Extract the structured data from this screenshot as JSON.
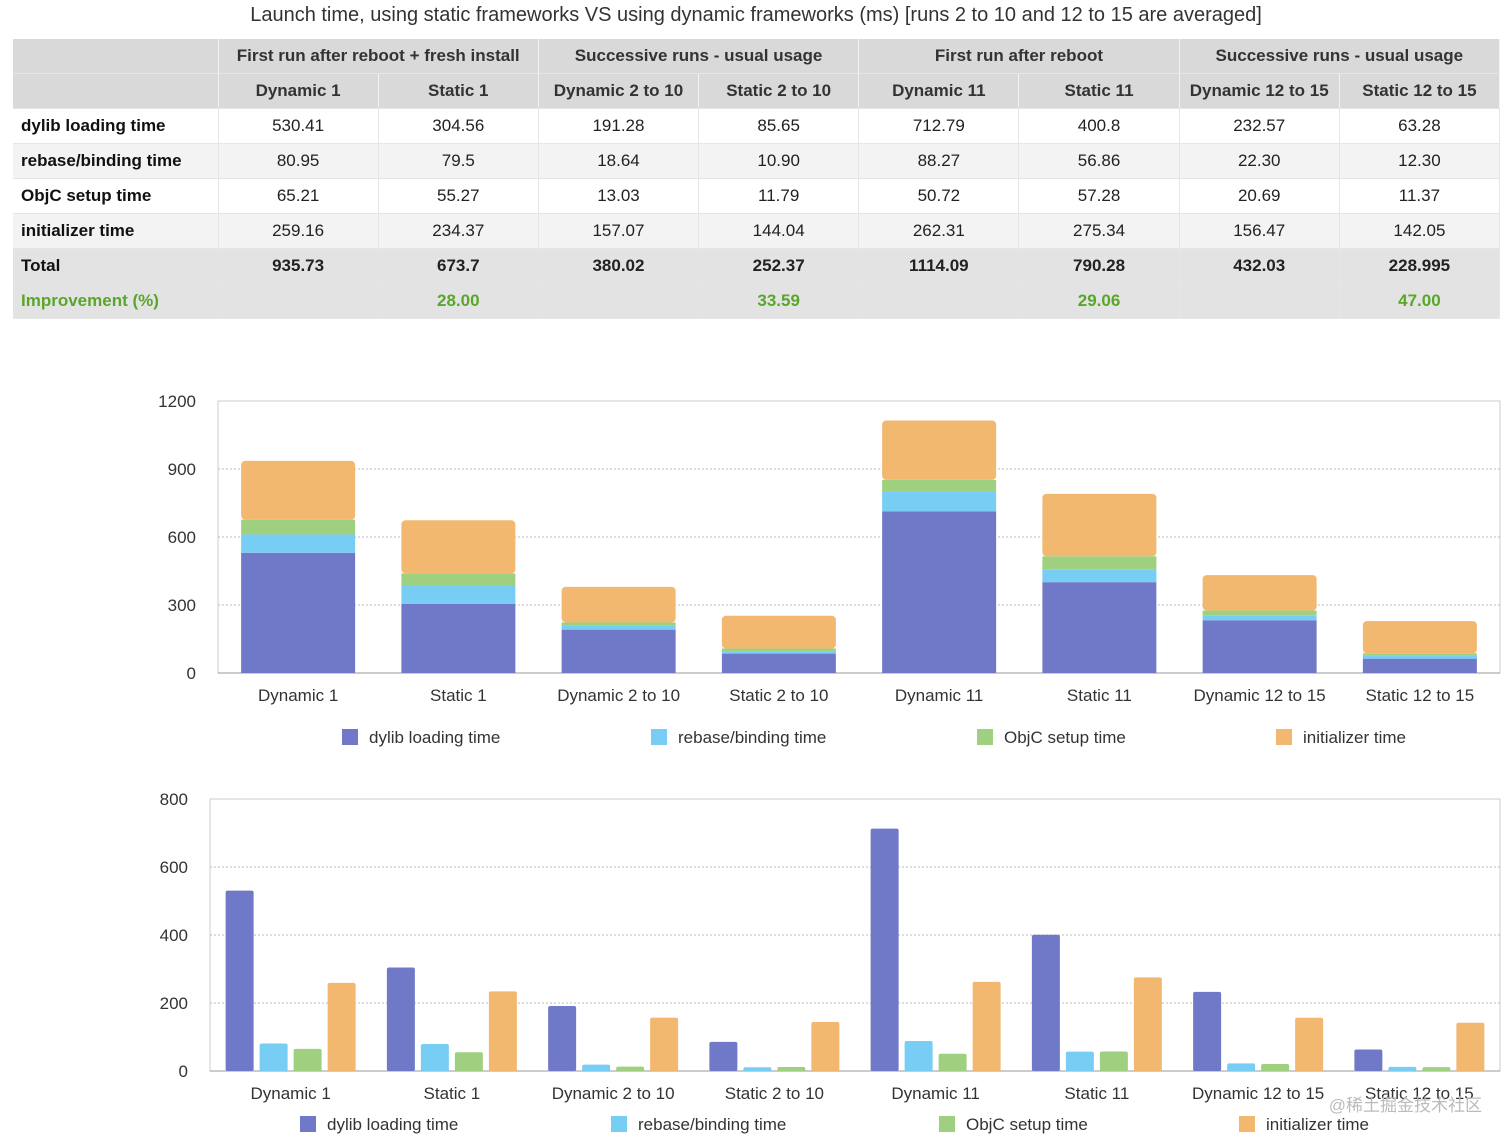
{
  "title": "Launch time, using static frameworks VS using dynamic frameworks (ms) [runs 2 to 10 and 12 to 15 are averaged]",
  "table": {
    "groups": [
      "First run after reboot + fresh install",
      "Successive runs - usual usage",
      "First run after reboot",
      "Successive runs - usual usage"
    ],
    "columns": [
      "Dynamic 1",
      "Static 1",
      "Dynamic 2 to 10",
      "Static 2 to 10",
      "Dynamic 11",
      "Static 11",
      "Dynamic 12 to 15",
      "Static 12 to 15"
    ],
    "rows": [
      {
        "label": "dylib loading time",
        "values": [
          "530.41",
          "304.56",
          "191.28",
          "85.65",
          "712.79",
          "400.8",
          "232.57",
          "63.28"
        ]
      },
      {
        "label": "rebase/binding time",
        "values": [
          "80.95",
          "79.5",
          "18.64",
          "10.90",
          "88.27",
          "56.86",
          "22.30",
          "12.30"
        ]
      },
      {
        "label": "ObjC setup time",
        "values": [
          "65.21",
          "55.27",
          "13.03",
          "11.79",
          "50.72",
          "57.28",
          "20.69",
          "11.37"
        ]
      },
      {
        "label": "initializer time",
        "values": [
          "259.16",
          "234.37",
          "157.07",
          "144.04",
          "262.31",
          "275.34",
          "156.47",
          "142.05"
        ]
      }
    ],
    "total": {
      "label": "Total",
      "values": [
        "935.73",
        "673.7",
        "380.02",
        "252.37",
        "1114.09",
        "790.28",
        "432.03",
        "228.995"
      ]
    },
    "improvement": {
      "label": "Improvement (%)",
      "values": [
        "",
        "28.00",
        "",
        "33.59",
        "",
        "29.06",
        "",
        "47.00"
      ]
    }
  },
  "colors": {
    "dylib": "#7079c8",
    "rebase": "#78cdf5",
    "objc": "#9ed07f",
    "init": "#f3b870"
  },
  "watermark": "@稀土掘金技术社区",
  "chart_data": [
    {
      "type": "bar",
      "stacked": true,
      "categories": [
        "Dynamic 1",
        "Static 1",
        "Dynamic 2 to 10",
        "Static 2 to 10",
        "Dynamic 11",
        "Static 11",
        "Dynamic 12 to 15",
        "Static 12 to 15"
      ],
      "series": [
        {
          "name": "dylib loading time",
          "color": "#7079c8",
          "values": [
            530.41,
            304.56,
            191.28,
            85.65,
            712.79,
            400.8,
            232.57,
            63.28
          ]
        },
        {
          "name": "rebase/binding time",
          "color": "#78cdf5",
          "values": [
            80.95,
            79.5,
            18.64,
            10.9,
            88.27,
            56.86,
            22.3,
            12.3
          ]
        },
        {
          "name": "ObjC setup time",
          "color": "#9ed07f",
          "values": [
            65.21,
            55.27,
            13.03,
            11.79,
            50.72,
            57.28,
            20.69,
            11.37
          ]
        },
        {
          "name": "initializer time",
          "color": "#f3b870",
          "values": [
            259.16,
            234.37,
            157.07,
            144.04,
            262.31,
            275.34,
            156.47,
            142.05
          ]
        }
      ],
      "yticks": [
        "0",
        "300",
        "600",
        "900",
        "1200"
      ],
      "ylim": [
        0,
        1200
      ],
      "grid": true,
      "legend": "bottom"
    },
    {
      "type": "bar",
      "stacked": false,
      "categories": [
        "Dynamic 1",
        "Static 1",
        "Dynamic 2 to 10",
        "Static 2 to 10",
        "Dynamic 11",
        "Static 11",
        "Dynamic 12 to 15",
        "Static 12 to 15"
      ],
      "series": [
        {
          "name": "dylib loading time",
          "color": "#7079c8",
          "values": [
            530.41,
            304.56,
            191.28,
            85.65,
            712.79,
            400.8,
            232.57,
            63.28
          ]
        },
        {
          "name": "rebase/binding time",
          "color": "#78cdf5",
          "values": [
            80.95,
            79.5,
            18.64,
            10.9,
            88.27,
            56.86,
            22.3,
            12.3
          ]
        },
        {
          "name": "ObjC setup time",
          "color": "#9ed07f",
          "values": [
            65.21,
            55.27,
            13.03,
            11.79,
            50.72,
            57.28,
            20.69,
            11.37
          ]
        },
        {
          "name": "initializer time",
          "color": "#f3b870",
          "values": [
            259.16,
            234.37,
            157.07,
            144.04,
            262.31,
            275.34,
            156.47,
            142.05
          ]
        }
      ],
      "yticks": [
        "0",
        "200",
        "400",
        "600",
        "800"
      ],
      "ylim": [
        0,
        800
      ],
      "grid": true,
      "legend": "bottom"
    }
  ]
}
